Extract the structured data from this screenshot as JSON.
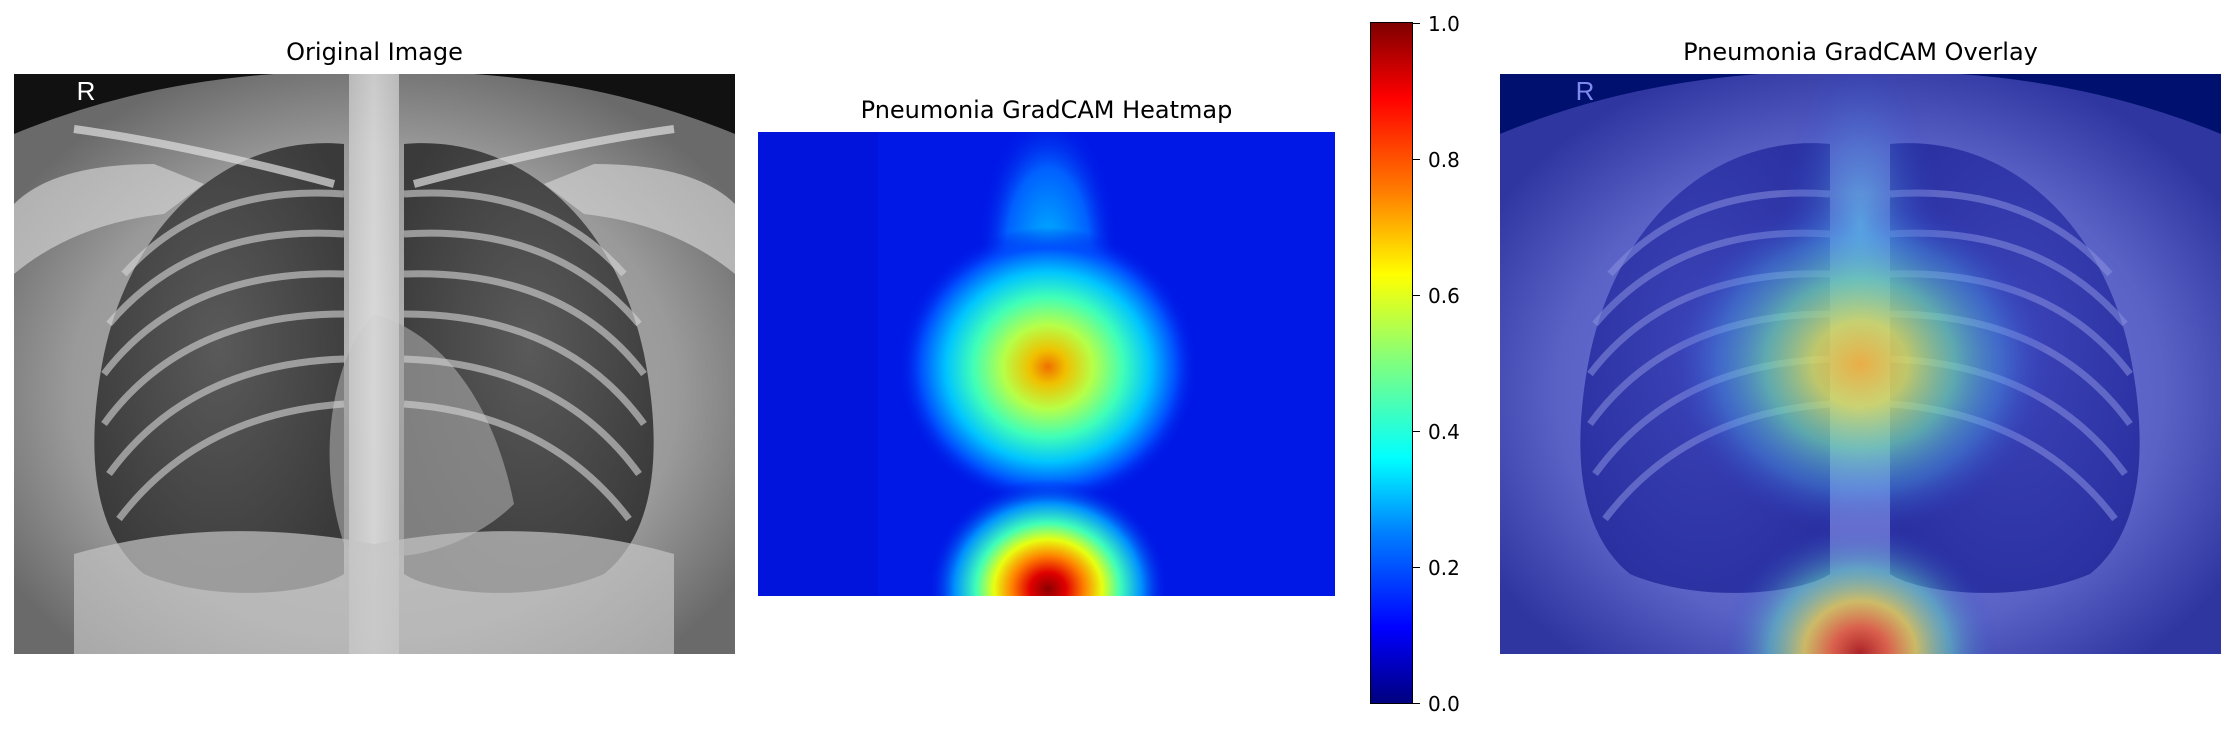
{
  "panels": {
    "original": {
      "title": "Original Image",
      "marker": "R"
    },
    "heatmap": {
      "title": "Pneumonia GradCAM Heatmap"
    },
    "overlay": {
      "title": "Pneumonia GradCAM Overlay",
      "marker": "R"
    }
  },
  "colorbar": {
    "colormap": "jet",
    "ticks": [
      "0.0",
      "0.2",
      "0.4",
      "0.6",
      "0.8",
      "1.0"
    ],
    "range": [
      0.0,
      1.0
    ]
  }
}
